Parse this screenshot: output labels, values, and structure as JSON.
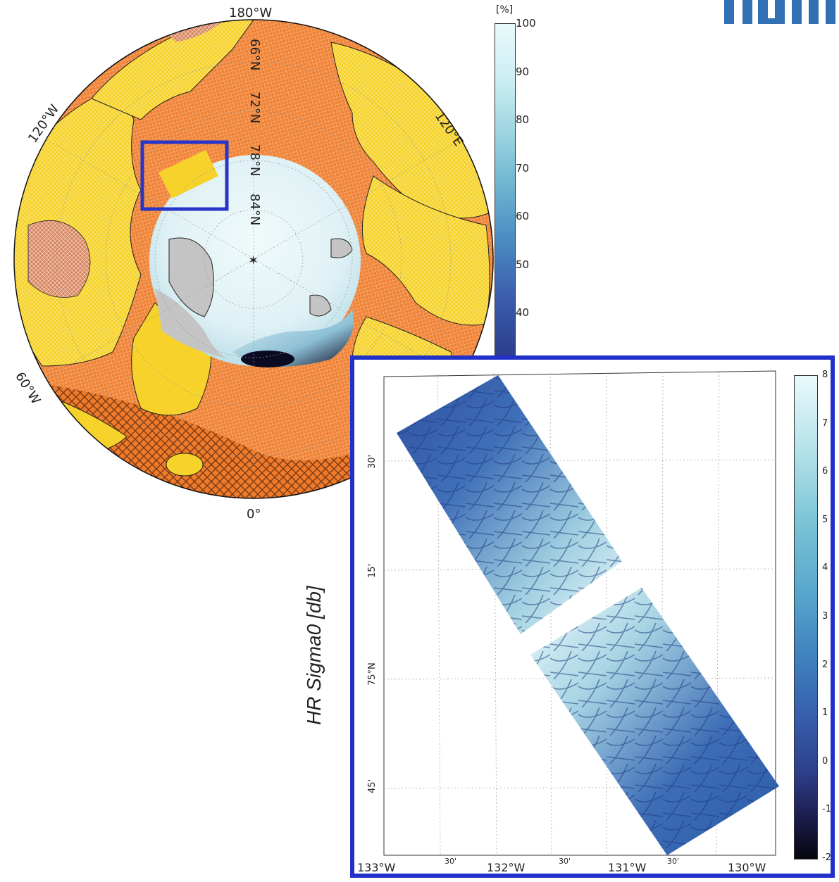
{
  "overview_map": {
    "labels": {
      "lon_180w": "180°W",
      "lon_120w": "120°W",
      "lon_120e": "120°E",
      "lon_60w": "60°W",
      "lon_0": "0°",
      "lat_66n": "66°N",
      "lat_72n": "72°N",
      "lat_78n": "78°N",
      "lat_84n": "84°N"
    },
    "colors": {
      "land": "#f6d22a",
      "ocean": "#ef8235",
      "ice_low": "#0a0a22",
      "ice_high": "#e6f6f8",
      "pole_gap": "#c4c4c4",
      "highlight_box": "#2a35c8"
    }
  },
  "concentration_colorbar": {
    "unit": "[%]",
    "ticks": [
      "100",
      "90",
      "80",
      "70",
      "60",
      "50",
      "40"
    ]
  },
  "inset_map": {
    "colorbar_label": "HR Sigma0 [db]",
    "colorbar_ticks": [
      "8",
      "7",
      "6",
      "5",
      "4",
      "3",
      "2",
      "1",
      "0",
      "-1",
      "-2"
    ],
    "lon_ticks": [
      "133°W",
      "30'",
      "132°W",
      "30'",
      "131°W",
      "30'",
      "130°W"
    ],
    "lat_ticks": [
      "30'",
      "15'",
      "75°N",
      "45'"
    ],
    "colors": {
      "frame": "#2130c8",
      "cmap_low": "#0b0b1e",
      "cmap_mid": "#3467b3",
      "cmap_high": "#e8f8fa"
    }
  },
  "logo": {
    "text": "TUM",
    "color": "#3070b3"
  }
}
